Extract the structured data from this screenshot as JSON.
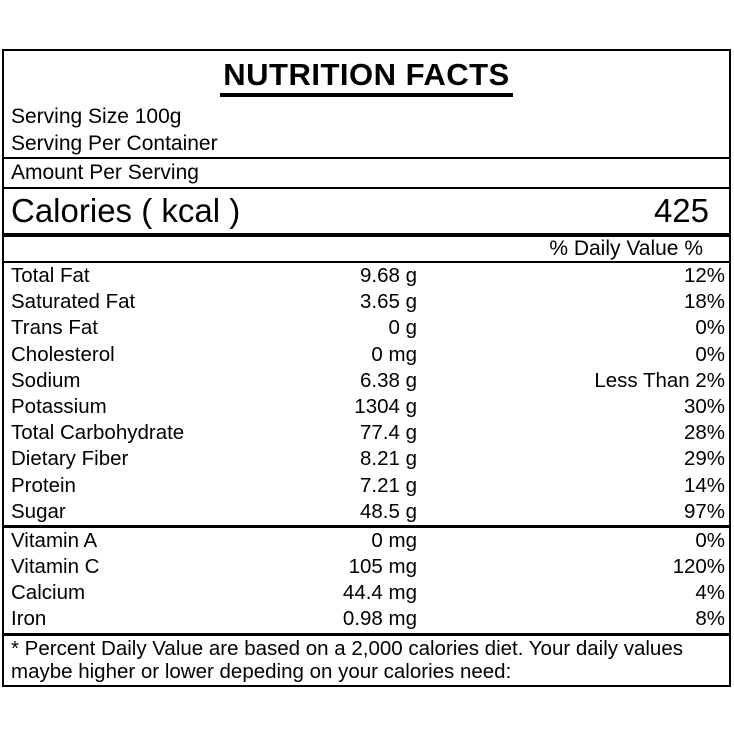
{
  "label": {
    "title": "NUTRITION FACTS",
    "serving_size": "Serving Size 100g",
    "serving_per_container": "Serving Per Container",
    "amount_per_serving_header": "Amount Per Serving",
    "calories": {
      "label": "Calories ( kcal )",
      "value": "425"
    },
    "daily_value_header": "% Daily Value %",
    "nutrients": [
      {
        "label": "Total Fat",
        "amount": "9.68 g",
        "percent": "12%"
      },
      {
        "label": "Saturated Fat",
        "amount": "3.65 g",
        "percent": "18%"
      },
      {
        "label": "Trans Fat",
        "amount": "0 g",
        "percent": "0%"
      },
      {
        "label": "Cholesterol",
        "amount": "0 mg",
        "percent": "0%"
      },
      {
        "label": "Sodium",
        "amount": "6.38 g",
        "percent": "Less Than 2%"
      },
      {
        "label": "Potassium",
        "amount": "1304 g",
        "percent": "30%"
      },
      {
        "label": "Total Carbohydrate",
        "amount": "77.4 g",
        "percent": "28%"
      },
      {
        "label": "Dietary Fiber",
        "amount": "8.21 g",
        "percent": "29%"
      },
      {
        "label": "Protein",
        "amount": "7.21 g",
        "percent": "14%"
      },
      {
        "label": "Sugar",
        "amount": "48.5 g",
        "percent": "97%"
      }
    ],
    "vitamins": [
      {
        "label": "Vitamin A",
        "amount": "0 mg",
        "percent": "0%"
      },
      {
        "label": "Vitamin C",
        "amount": "105 mg",
        "percent": "120%"
      },
      {
        "label": "Calcium",
        "amount": "44.4 mg",
        "percent": "4%"
      },
      {
        "label": "Iron",
        "amount": "0.98 mg",
        "percent": "8%"
      }
    ],
    "footnote_line1": "* Percent Daily Value are based on a 2,000 calories diet. Your daily values",
    "footnote_line2": "maybe higher or lower depeding on your calories need:",
    "colors": {
      "text": "#000000",
      "background": "#ffffff",
      "border": "#000000"
    }
  }
}
